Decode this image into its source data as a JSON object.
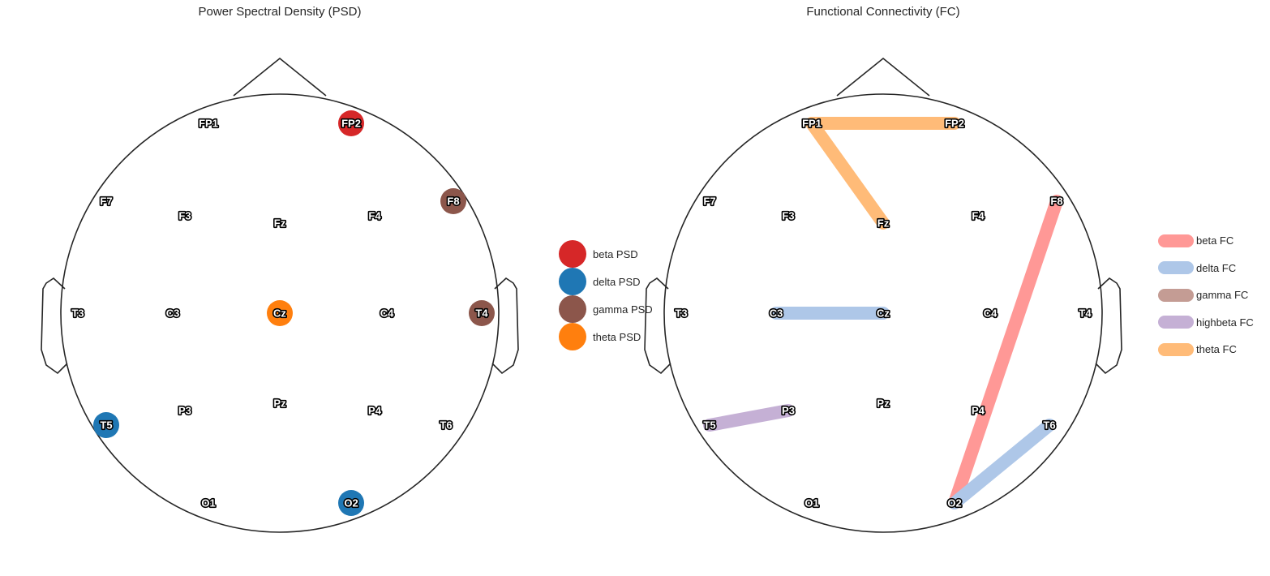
{
  "panels": {
    "psd": {
      "title": "Power Spectral Density (PSD)"
    },
    "fc": {
      "title": "Functional Connectivity (FC)"
    }
  },
  "electrodes": [
    "FP1",
    "FP2",
    "F7",
    "F3",
    "Fz",
    "F4",
    "F8",
    "T3",
    "C3",
    "Cz",
    "C4",
    "T4",
    "T5",
    "P3",
    "Pz",
    "P4",
    "T6",
    "O1",
    "O2"
  ],
  "colors": {
    "beta_psd": "#d62728",
    "delta_psd": "#1f77b4",
    "gamma_psd": "#8c564b",
    "theta_psd": "#ff7f0e",
    "beta_fc": "#ff9896",
    "delta_fc": "#aec7e8",
    "gamma_fc": "#c49c94",
    "highbeta_fc": "#c5b0d5",
    "theta_fc": "#ffbb78",
    "head_outline": "#262626"
  },
  "psd_markers": [
    {
      "electrode": "FP2",
      "band": "beta"
    },
    {
      "electrode": "F8",
      "band": "gamma"
    },
    {
      "electrode": "T4",
      "band": "gamma"
    },
    {
      "electrode": "Cz",
      "band": "theta"
    },
    {
      "electrode": "T5",
      "band": "delta"
    },
    {
      "electrode": "O2",
      "band": "delta"
    }
  ],
  "fc_connections": [
    {
      "from": "FP1",
      "to": "FP2",
      "band": "theta"
    },
    {
      "from": "FP1",
      "to": "Fz",
      "band": "theta"
    },
    {
      "from": "C3",
      "to": "Cz",
      "band": "delta"
    },
    {
      "from": "T5",
      "to": "P3",
      "band": "highbeta"
    },
    {
      "from": "O2",
      "to": "F8",
      "band": "beta"
    },
    {
      "from": "O2",
      "to": "T6",
      "band": "delta"
    }
  ],
  "psd_legend": [
    {
      "label": "beta PSD",
      "color": "#d62728"
    },
    {
      "label": "delta PSD",
      "color": "#1f77b4"
    },
    {
      "label": "gamma PSD",
      "color": "#8c564b"
    },
    {
      "label": "theta PSD",
      "color": "#ff7f0e"
    }
  ],
  "fc_legend": [
    {
      "label": "beta FC",
      "color": "#ff9896"
    },
    {
      "label": "delta FC",
      "color": "#aec7e8"
    },
    {
      "label": "gamma FC",
      "color": "#c49c94"
    },
    {
      "label": "highbeta FC",
      "color": "#c5b0d5"
    },
    {
      "label": "theta FC",
      "color": "#ffbb78"
    }
  ]
}
